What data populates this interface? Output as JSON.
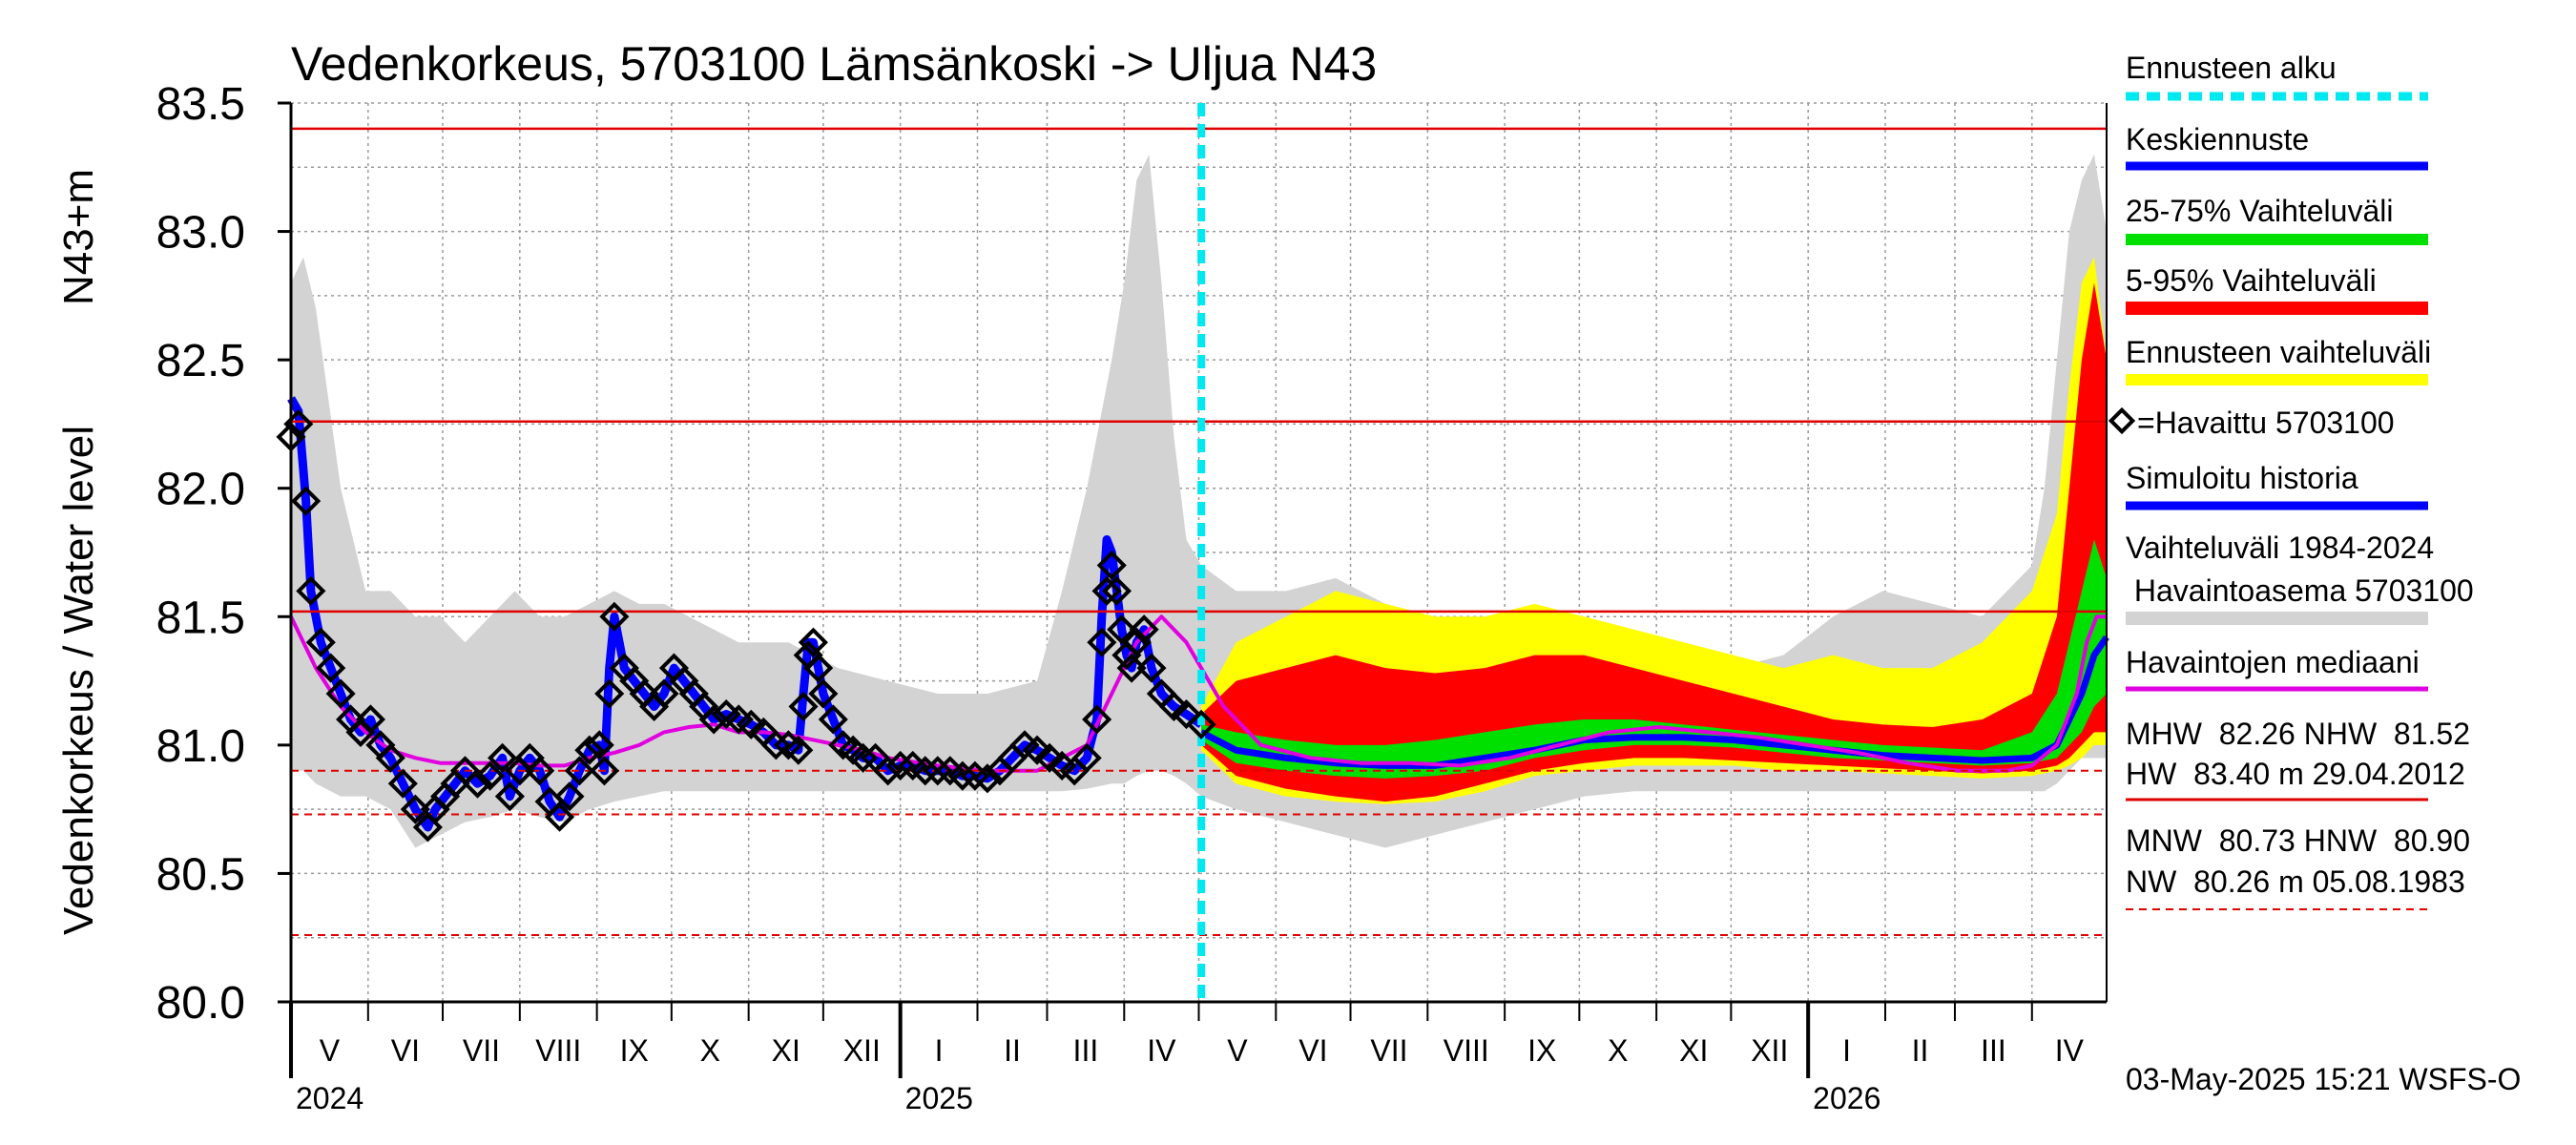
{
  "chart_data": {
    "type": "area",
    "title": "Vedenkorkeus, 5703100 Lämsänkoski -> Uljua N43",
    "ylabel": "Vedenkorkeus / Water level",
    "yunit": "N43+m",
    "ylim": [
      80.0,
      83.5
    ],
    "yticks": [
      "80.0",
      "80.5",
      "81.0",
      "81.5",
      "82.0",
      "82.5",
      "83.0",
      "83.5"
    ],
    "xlim_days": [
      0,
      730
    ],
    "months": [
      "V",
      "VI",
      "VII",
      "VIII",
      "IX",
      "X",
      "XI",
      "XII",
      "I",
      "II",
      "III",
      "IV",
      "V",
      "VI",
      "VII",
      "VIII",
      "IX",
      "X",
      "XI",
      "XII",
      "I",
      "II",
      "III",
      "IV"
    ],
    "month_starts_days": [
      0,
      31,
      61,
      92,
      123,
      153,
      184,
      214,
      245,
      276,
      304,
      335,
      365,
      396,
      426,
      457,
      488,
      518,
      549,
      579,
      610,
      641,
      669,
      700
    ],
    "years": [
      {
        "label": "2024",
        "day": 0
      },
      {
        "label": "2025",
        "day": 245
      },
      {
        "label": "2026",
        "day": 610
      }
    ],
    "forecast_start_day": 366,
    "reference_levels": {
      "HW": 83.4,
      "MHW": 82.26,
      "NHW": 81.52,
      "HNW": 80.9,
      "MNW": 80.73,
      "NW": 80.26
    },
    "series_observed": {
      "name": "Havaittu 5703100",
      "x": [
        0,
        3,
        6,
        8,
        12,
        16,
        20,
        24,
        28,
        32,
        36,
        40,
        45,
        50,
        55,
        58,
        62,
        66,
        70,
        75,
        80,
        85,
        88,
        92,
        96,
        100,
        104,
        108,
        112,
        116,
        120,
        124,
        126,
        128,
        130,
        134,
        138,
        142,
        146,
        150,
        154,
        158,
        162,
        166,
        170,
        175,
        180,
        185,
        190,
        195,
        200,
        204,
        206,
        208,
        210,
        212,
        214,
        218,
        222,
        226,
        230,
        235,
        240,
        245,
        250,
        255,
        260,
        265,
        270,
        275,
        280,
        285,
        290,
        295,
        300,
        305,
        310,
        315,
        320,
        324,
        326,
        328,
        330,
        332,
        334,
        336,
        338,
        340,
        343,
        346,
        350,
        355,
        360,
        366
      ],
      "y": [
        82.2,
        82.25,
        81.95,
        81.6,
        81.4,
        81.3,
        81.2,
        81.1,
        81.05,
        81.1,
        81.0,
        80.95,
        80.85,
        80.75,
        80.68,
        80.75,
        80.8,
        80.85,
        80.9,
        80.85,
        80.88,
        80.95,
        80.8,
        80.9,
        80.95,
        80.9,
        80.78,
        80.72,
        80.8,
        80.9,
        80.98,
        81.0,
        80.9,
        81.2,
        81.5,
        81.3,
        81.25,
        81.2,
        81.15,
        81.2,
        81.3,
        81.25,
        81.2,
        81.15,
        81.1,
        81.12,
        81.1,
        81.08,
        81.05,
        81.0,
        81.0,
        80.98,
        81.15,
        81.35,
        81.4,
        81.3,
        81.2,
        81.1,
        81.0,
        80.98,
        80.95,
        80.95,
        80.9,
        80.92,
        80.92,
        80.9,
        80.9,
        80.9,
        80.88,
        80.88,
        80.87,
        80.9,
        80.95,
        81.0,
        80.98,
        80.95,
        80.92,
        80.9,
        80.95,
        81.1,
        81.4,
        81.6,
        81.7,
        81.6,
        81.45,
        81.35,
        81.3,
        81.4,
        81.45,
        81.3,
        81.2,
        81.15,
        81.12,
        81.08
      ]
    },
    "series_simulated": {
      "name": "Simuloitu historia",
      "x": [
        0,
        3,
        6,
        8,
        12,
        16,
        20,
        24,
        28,
        32,
        36,
        40,
        45,
        50,
        55,
        58,
        62,
        66,
        70,
        75,
        80,
        85,
        88,
        92,
        96,
        100,
        104,
        108,
        112,
        116,
        120,
        124,
        126,
        128,
        130,
        134,
        138,
        142,
        146,
        150,
        154,
        158,
        162,
        166,
        170,
        175,
        180,
        185,
        190,
        195,
        200,
        204,
        206,
        208,
        210,
        212,
        214,
        218,
        222,
        226,
        230,
        235,
        240,
        245,
        250,
        255,
        260,
        265,
        270,
        275,
        280,
        285,
        290,
        295,
        300,
        305,
        310,
        315,
        320,
        324,
        326,
        328,
        330,
        332,
        334,
        336,
        338,
        340,
        343,
        346,
        350,
        355,
        360,
        366
      ],
      "y": [
        82.35,
        82.3,
        81.95,
        81.6,
        81.4,
        81.3,
        81.2,
        81.1,
        81.05,
        81.1,
        81.0,
        80.95,
        80.85,
        80.75,
        80.68,
        80.75,
        80.8,
        80.85,
        80.9,
        80.85,
        80.88,
        80.95,
        80.8,
        80.9,
        80.95,
        80.9,
        80.78,
        80.72,
        80.8,
        80.9,
        80.98,
        81.0,
        80.9,
        81.3,
        81.5,
        81.3,
        81.25,
        81.2,
        81.15,
        81.2,
        81.3,
        81.25,
        81.2,
        81.15,
        81.1,
        81.12,
        81.1,
        81.08,
        81.05,
        81.0,
        81.0,
        80.98,
        81.2,
        81.4,
        81.4,
        81.3,
        81.2,
        81.1,
        81.0,
        80.98,
        80.95,
        80.95,
        80.9,
        80.92,
        80.92,
        80.9,
        80.9,
        80.9,
        80.88,
        80.88,
        80.87,
        80.9,
        80.95,
        81.0,
        80.98,
        80.95,
        80.92,
        80.9,
        80.95,
        81.1,
        81.5,
        81.8,
        81.75,
        81.6,
        81.45,
        81.35,
        81.3,
        81.4,
        81.45,
        81.3,
        81.2,
        81.15,
        81.12,
        81.08
      ]
    },
    "series_median": {
      "name": "Havaintojen mediaani",
      "x": [
        0,
        5,
        10,
        20,
        30,
        40,
        50,
        60,
        70,
        80,
        90,
        100,
        110,
        120,
        130,
        140,
        150,
        160,
        170,
        180,
        190,
        200,
        210,
        220,
        230,
        240,
        260,
        280,
        300,
        310,
        320,
        330,
        340,
        350,
        360,
        366,
        375,
        390,
        410,
        430,
        450,
        470,
        490,
        510,
        530,
        550,
        570,
        590,
        610,
        630,
        650,
        670,
        690,
        700,
        710,
        718,
        722,
        726,
        730
      ],
      "y": [
        81.5,
        81.4,
        81.3,
        81.15,
        81.05,
        80.98,
        80.95,
        80.93,
        80.93,
        80.93,
        80.93,
        80.92,
        80.92,
        80.95,
        80.97,
        81.0,
        81.05,
        81.07,
        81.08,
        81.05,
        81.05,
        81.04,
        81.02,
        81.0,
        80.98,
        80.95,
        80.92,
        80.9,
        80.9,
        80.95,
        81.0,
        81.2,
        81.4,
        81.5,
        81.4,
        81.3,
        81.15,
        81.0,
        80.95,
        80.93,
        80.93,
        80.92,
        80.95,
        81.0,
        81.05,
        81.07,
        81.05,
        81.03,
        81.0,
        80.97,
        80.93,
        80.9,
        80.9,
        80.92,
        81.0,
        81.2,
        81.4,
        81.5,
        81.5
      ]
    },
    "forecast": {
      "x": [
        366,
        380,
        400,
        420,
        440,
        460,
        480,
        500,
        520,
        540,
        560,
        580,
        600,
        620,
        640,
        660,
        680,
        700,
        710,
        715,
        720,
        725,
        730
      ],
      "mean": [
        81.05,
        80.98,
        80.95,
        80.93,
        80.92,
        80.92,
        80.95,
        80.98,
        81.02,
        81.03,
        81.03,
        81.02,
        81.0,
        80.98,
        80.96,
        80.95,
        80.94,
        80.95,
        81.0,
        81.1,
        81.2,
        81.35,
        81.42
      ],
      "p25": [
        81.02,
        80.93,
        80.9,
        80.88,
        80.87,
        80.88,
        80.9,
        80.95,
        80.98,
        81.0,
        81.0,
        80.99,
        80.97,
        80.95,
        80.94,
        80.93,
        80.92,
        80.93,
        80.95,
        81.0,
        81.05,
        81.15,
        81.2
      ],
      "p75": [
        81.08,
        81.05,
        81.02,
        81.0,
        81.0,
        81.02,
        81.05,
        81.08,
        81.1,
        81.1,
        81.08,
        81.06,
        81.04,
        81.02,
        81.0,
        80.99,
        80.98,
        81.05,
        81.2,
        81.4,
        81.6,
        81.8,
        81.65
      ],
      "p5": [
        81.0,
        80.88,
        80.83,
        80.8,
        80.78,
        80.8,
        80.85,
        80.9,
        80.93,
        80.95,
        80.95,
        80.94,
        80.93,
        80.92,
        80.91,
        80.9,
        80.89,
        80.9,
        80.92,
        80.95,
        81.0,
        81.05,
        81.05
      ],
      "p95": [
        81.12,
        81.25,
        81.3,
        81.35,
        81.3,
        81.28,
        81.3,
        81.35,
        81.35,
        81.3,
        81.25,
        81.2,
        81.15,
        81.1,
        81.08,
        81.07,
        81.1,
        81.2,
        81.5,
        82.0,
        82.5,
        82.8,
        82.5
      ],
      "min": [
        80.98,
        80.85,
        80.8,
        80.78,
        80.77,
        80.78,
        80.82,
        80.88,
        80.9,
        80.92,
        80.92,
        80.92,
        80.9,
        80.9,
        80.89,
        80.88,
        80.87,
        80.88,
        80.9,
        80.92,
        80.95,
        81.0,
        81.0
      ],
      "max": [
        81.15,
        81.4,
        81.5,
        81.6,
        81.55,
        81.5,
        81.5,
        81.55,
        81.5,
        81.45,
        81.4,
        81.35,
        81.3,
        81.35,
        81.3,
        81.3,
        81.4,
        81.6,
        81.9,
        82.4,
        82.8,
        82.9,
        82.5
      ]
    },
    "history_range": {
      "x": [
        0,
        5,
        10,
        20,
        30,
        40,
        50,
        60,
        70,
        80,
        90,
        100,
        110,
        120,
        130,
        140,
        150,
        160,
        170,
        180,
        190,
        200,
        210,
        220,
        240,
        260,
        280,
        300,
        310,
        320,
        330,
        335,
        340,
        345,
        350,
        355,
        360,
        366,
        380,
        400,
        420,
        440,
        460,
        480,
        500,
        520,
        540,
        560,
        580,
        600,
        620,
        640,
        660,
        680,
        700,
        705,
        710,
        715,
        720,
        725,
        730
      ],
      "lo": [
        80.9,
        80.9,
        80.85,
        80.8,
        80.8,
        80.75,
        80.6,
        80.65,
        80.7,
        80.72,
        80.75,
        80.72,
        80.7,
        80.75,
        80.78,
        80.8,
        80.82,
        80.82,
        80.82,
        80.82,
        80.82,
        80.82,
        80.82,
        80.82,
        80.82,
        80.82,
        80.82,
        80.82,
        80.82,
        80.83,
        80.85,
        80.85,
        80.88,
        80.9,
        80.9,
        80.88,
        80.85,
        80.8,
        80.75,
        80.7,
        80.65,
        80.6,
        80.65,
        80.7,
        80.75,
        80.8,
        80.82,
        80.82,
        80.82,
        80.82,
        80.82,
        80.82,
        80.82,
        80.82,
        80.82,
        80.82,
        80.85,
        80.9,
        80.95,
        80.95,
        80.95
      ],
      "hi": [
        82.8,
        82.9,
        82.7,
        82.0,
        81.6,
        81.6,
        81.5,
        81.5,
        81.4,
        81.5,
        81.6,
        81.5,
        81.5,
        81.55,
        81.6,
        81.55,
        81.55,
        81.5,
        81.45,
        81.4,
        81.4,
        81.4,
        81.35,
        81.3,
        81.25,
        81.2,
        81.2,
        81.25,
        81.6,
        82.0,
        82.5,
        82.8,
        83.2,
        83.3,
        82.8,
        82.2,
        81.8,
        81.7,
        81.6,
        81.6,
        81.65,
        81.55,
        81.5,
        81.5,
        81.5,
        81.45,
        81.4,
        81.3,
        81.3,
        81.35,
        81.5,
        81.6,
        81.55,
        81.5,
        81.7,
        82.0,
        82.5,
        83.0,
        83.2,
        83.3,
        83.0
      ]
    }
  },
  "legend": {
    "forecast_start": "Ennusteen alku",
    "mean": "Keskiennuste",
    "p25_75": "25-75% Vaihteluväli",
    "p5_95": "5-95% Vaihteluväli",
    "range": "Ennusteen vaihteluväli",
    "observed": "=Havaittu 5703100",
    "simulated": "Simuloitu historia",
    "history_line1": "Vaihteluväli 1984-2024",
    "history_line2": " Havaintoasema 5703100",
    "median": "Havaintojen mediaani",
    "stats1": "MHW  82.26 NHW  81.52",
    "stats2": "HW  83.40 m 29.04.2012",
    "stats3": "MNW  80.73 HNW  80.90",
    "stats4": "NW  80.26 m 05.08.1983"
  },
  "footer": "03-May-2025 15:21 WSFS-O",
  "colors": {
    "history": "#d3d3d3",
    "range": "#ffff00",
    "p5_95": "#ff0000",
    "p25_75": "#00e000",
    "mean": "#0000ff",
    "median": "#e000e0",
    "forecast_start": "#00e8f0",
    "observed": "#000000",
    "ref_line": "#e00000"
  }
}
